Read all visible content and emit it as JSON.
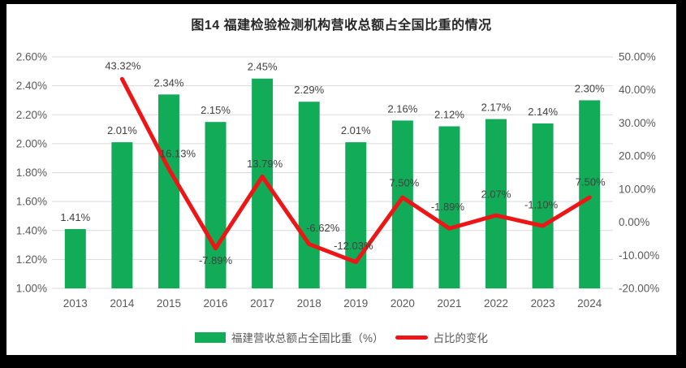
{
  "title": "图14 福建检验检测机构营收总额占全国比重的情况",
  "colors": {
    "bar": "#12ab58",
    "line": "#ed1515",
    "grid": "#d9d9d9",
    "frame": "#000000"
  },
  "legend": {
    "bar_label": "福建营收总额占全国比重（%）",
    "line_label": "占比的变化"
  },
  "chart_data": {
    "type": "bar+line-combo",
    "title": "图14 福建检验检测机构营收总额占全国比重的情况",
    "categories": [
      "2013",
      "2014",
      "2015",
      "2016",
      "2017",
      "2018",
      "2019",
      "2020",
      "2021",
      "2022",
      "2023",
      "2024"
    ],
    "grid": true,
    "legend_position": "bottom",
    "left_axis": {
      "min": 1.0,
      "max": 2.6,
      "step": 0.2,
      "ticks": [
        "1.00%",
        "1.20%",
        "1.40%",
        "1.60%",
        "1.80%",
        "2.00%",
        "2.20%",
        "2.40%",
        "2.60%"
      ]
    },
    "right_axis": {
      "min": -20,
      "max": 50,
      "step": 10,
      "ticks": [
        "-20.00%",
        "-10.00%",
        "0.00%",
        "10.00%",
        "20.00%",
        "30.00%",
        "40.00%",
        "50.00%"
      ]
    },
    "series": [
      {
        "name": "福建营收总额占全国比重（%）",
        "type": "bar",
        "axis": "left",
        "color": "#12ab58",
        "values": [
          1.41,
          2.01,
          2.34,
          2.15,
          2.45,
          2.29,
          2.01,
          2.16,
          2.12,
          2.17,
          2.14,
          2.3
        ],
        "labels": [
          "1.41%",
          "2.01%",
          "2.34%",
          "2.15%",
          "2.45%",
          "2.29%",
          "2.01%",
          "2.16%",
          "2.12%",
          "2.17%",
          "2.14%",
          "2.30%"
        ]
      },
      {
        "name": "占比的变化",
        "type": "line",
        "axis": "right",
        "color": "#ed1515",
        "points": [
          {
            "category": "2014",
            "value": 43.32,
            "label": "43.32%",
            "label_dx": 1,
            "label_dy": -16
          },
          {
            "category": "2015",
            "value": 16.13,
            "label": "16.13%",
            "label_dx": 11,
            "label_dy": -19
          },
          {
            "category": "2016",
            "value": -7.89,
            "label": "-7.89%",
            "label_dx": 0,
            "label_dy": 15
          },
          {
            "category": "2017",
            "value": 13.79,
            "label": "13.79%",
            "label_dx": 3,
            "label_dy": -16
          },
          {
            "category": "2018",
            "value": -6.62,
            "label": "-6.62%",
            "label_dx": 17,
            "label_dy": -20
          },
          {
            "category": "2019",
            "value": -12.03,
            "label": "-12.03%",
            "label_dx": -3,
            "label_dy": -20
          },
          {
            "category": "2020",
            "value": 7.5,
            "label": "7.50%",
            "label_dx": 2,
            "label_dy": -18
          },
          {
            "category": "2021",
            "value": -1.89,
            "label": "-1.89%",
            "label_dx": -2,
            "label_dy": -27
          },
          {
            "category": "2022",
            "value": 2.07,
            "label": "2.07%",
            "label_dx": 0,
            "label_dy": -26
          },
          {
            "category": "2023",
            "value": -1.1,
            "label": "-1.10%",
            "label_dx": -2,
            "label_dy": -26
          },
          {
            "category": "2024",
            "value": 7.5,
            "label": "7.50%",
            "label_dx": 1,
            "label_dy": -19
          }
        ]
      }
    ]
  }
}
